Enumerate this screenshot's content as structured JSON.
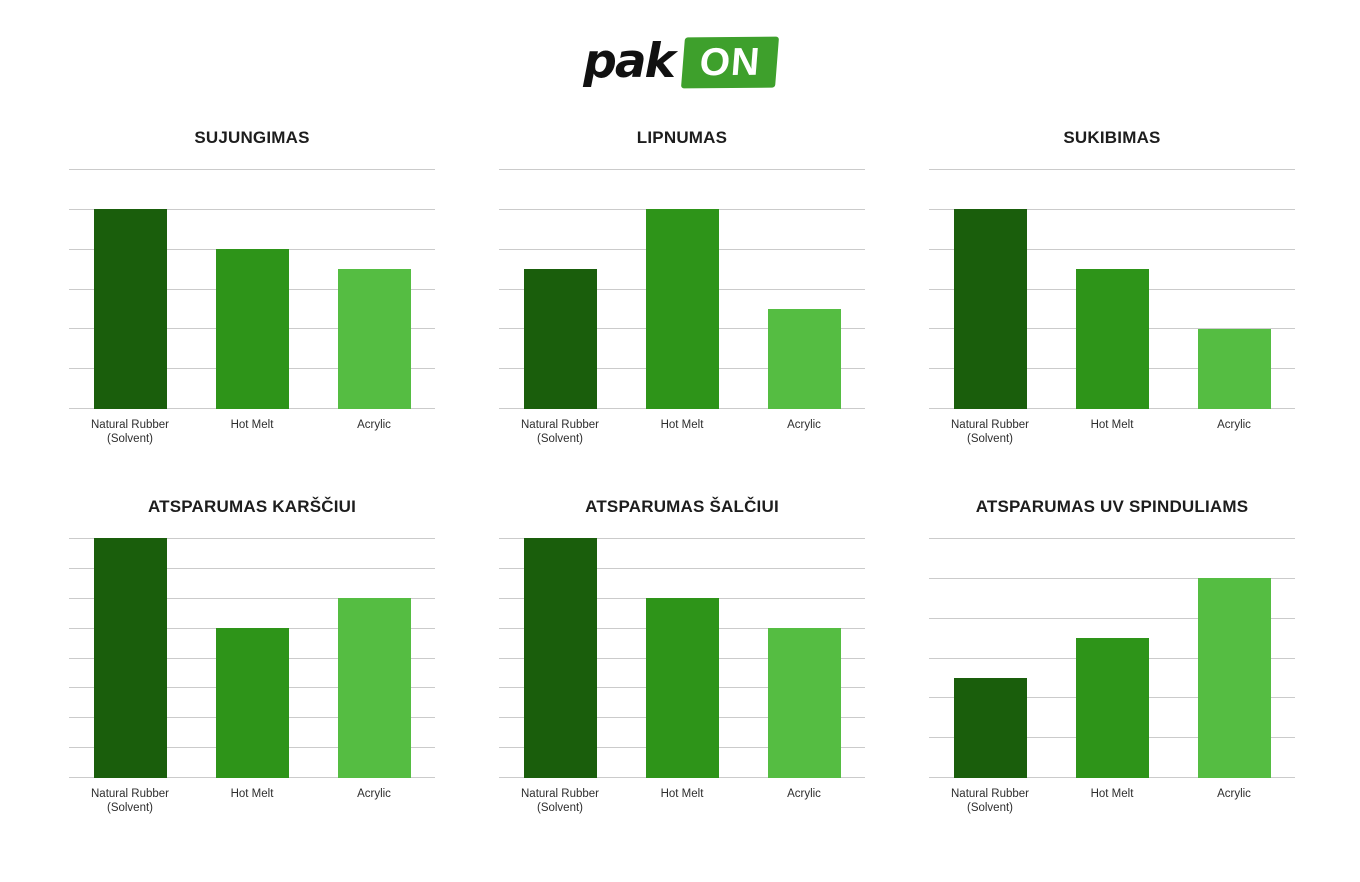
{
  "logo": {
    "text": "pak",
    "badge": "ON",
    "badge_color": "#3ea02c",
    "text_color": "#111111"
  },
  "palette": {
    "natural_rubber_solvent": "#1a5e0c",
    "hot_melt": "#2e9419",
    "acrylic": "#55bd42",
    "gridline": "#cbcbcb",
    "title_text": "#1d1d1d",
    "label_text": "#2e2e2e",
    "background": "#ffffff"
  },
  "series_meta": [
    {
      "slug": "natural-rubber-solvent",
      "label_lines": [
        "Natural Rubber",
        "(Solvent)"
      ],
      "color": "#1a5e0c"
    },
    {
      "slug": "hot-melt",
      "label_lines": [
        "Hot Melt"
      ],
      "color": "#2e9419"
    },
    {
      "slug": "acrylic",
      "label_lines": [
        "Acrylic"
      ],
      "color": "#55bd42"
    }
  ],
  "chart_data": [
    {
      "type": "bar",
      "title": "SUJUNGIMAS",
      "categories": [
        "Natural Rubber (Solvent)",
        "Hot Melt",
        "Acrylic"
      ],
      "values": [
        5,
        4,
        3.5
      ],
      "ylim": [
        0,
        6
      ],
      "gridline_count": 7,
      "grid_on": true,
      "bar_colors": [
        "#1a5e0c",
        "#2e9419",
        "#55bd42"
      ],
      "xlabel": "",
      "ylabel": ""
    },
    {
      "type": "bar",
      "title": "LIPNUMAS",
      "categories": [
        "Natural Rubber (Solvent)",
        "Hot Melt",
        "Acrylic"
      ],
      "values": [
        3.5,
        5,
        2.5
      ],
      "ylim": [
        0,
        6
      ],
      "gridline_count": 7,
      "grid_on": true,
      "bar_colors": [
        "#1a5e0c",
        "#2e9419",
        "#55bd42"
      ],
      "xlabel": "",
      "ylabel": ""
    },
    {
      "type": "bar",
      "title": "SUKIBIMAS",
      "categories": [
        "Natural Rubber (Solvent)",
        "Hot Melt",
        "Acrylic"
      ],
      "values": [
        5,
        3.5,
        2
      ],
      "ylim": [
        0,
        6
      ],
      "gridline_count": 7,
      "grid_on": true,
      "bar_colors": [
        "#1a5e0c",
        "#2e9419",
        "#55bd42"
      ],
      "xlabel": "",
      "ylabel": ""
    },
    {
      "type": "bar",
      "title": "ATSPARUMAS KARŠČIUI",
      "categories": [
        "Natural Rubber (Solvent)",
        "Hot Melt",
        "Acrylic"
      ],
      "values": [
        8,
        5,
        6
      ],
      "ylim": [
        0,
        8
      ],
      "gridline_count": 9,
      "grid_on": true,
      "bar_colors": [
        "#1a5e0c",
        "#2e9419",
        "#55bd42"
      ],
      "xlabel": "",
      "ylabel": ""
    },
    {
      "type": "bar",
      "title": "ATSPARUMAS ŠALČIUI",
      "categories": [
        "Natural Rubber (Solvent)",
        "Hot Melt",
        "Acrylic"
      ],
      "values": [
        8,
        6,
        5
      ],
      "ylim": [
        0,
        8
      ],
      "gridline_count": 9,
      "grid_on": true,
      "bar_colors": [
        "#1a5e0c",
        "#2e9419",
        "#55bd42"
      ],
      "xlabel": "",
      "ylabel": ""
    },
    {
      "type": "bar",
      "title": "ATSPARUMAS UV SPINDULIAMS",
      "categories": [
        "Natural Rubber (Solvent)",
        "Hot Melt",
        "Acrylic"
      ],
      "values": [
        2.5,
        3.5,
        5
      ],
      "ylim": [
        0,
        6
      ],
      "gridline_count": 7,
      "grid_on": true,
      "bar_colors": [
        "#1a5e0c",
        "#2e9419",
        "#55bd42"
      ],
      "xlabel": "",
      "ylabel": ""
    }
  ]
}
